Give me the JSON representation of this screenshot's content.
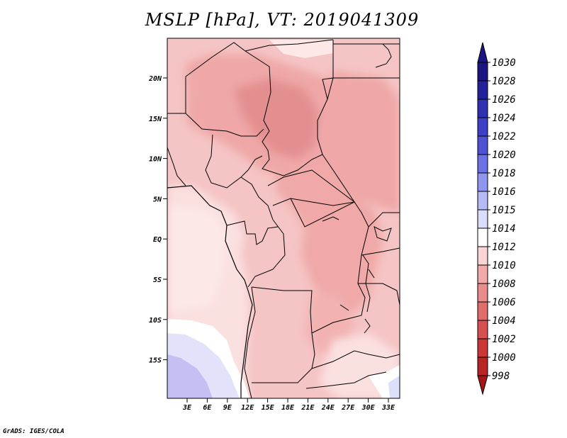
{
  "title": "MSLP [hPa], VT: 2019041309",
  "footer": "GrADS: IGES/COLA",
  "map": {
    "lat_labels": [
      "20N",
      "15N",
      "10N",
      "5N",
      "EQ",
      "5S",
      "10S",
      "15S"
    ],
    "lon_labels": [
      "3E",
      "6E",
      "9E",
      "12E",
      "15E",
      "18E",
      "21E",
      "24E",
      "27E",
      "30E",
      "33E"
    ]
  },
  "colorbar": {
    "levels": [
      "1030",
      "1028",
      "1026",
      "1024",
      "1022",
      "1020",
      "1018",
      "1016",
      "1015",
      "1014",
      "1012",
      "1010",
      "1008",
      "1006",
      "1004",
      "1002",
      "1000",
      "998"
    ],
    "colors": [
      "#1c1480",
      "#24229a",
      "#2f30b2",
      "#3d3fc6",
      "#4e53d6",
      "#6a72e6",
      "#8f96f0",
      "#b6baf6",
      "#d9dcfb",
      "#ffffff",
      "#f9d4d4",
      "#f2a9a9",
      "#e88c8c",
      "#e06c6c",
      "#d85050",
      "#cc3636",
      "#bb2424",
      "#a61616"
    ]
  }
}
